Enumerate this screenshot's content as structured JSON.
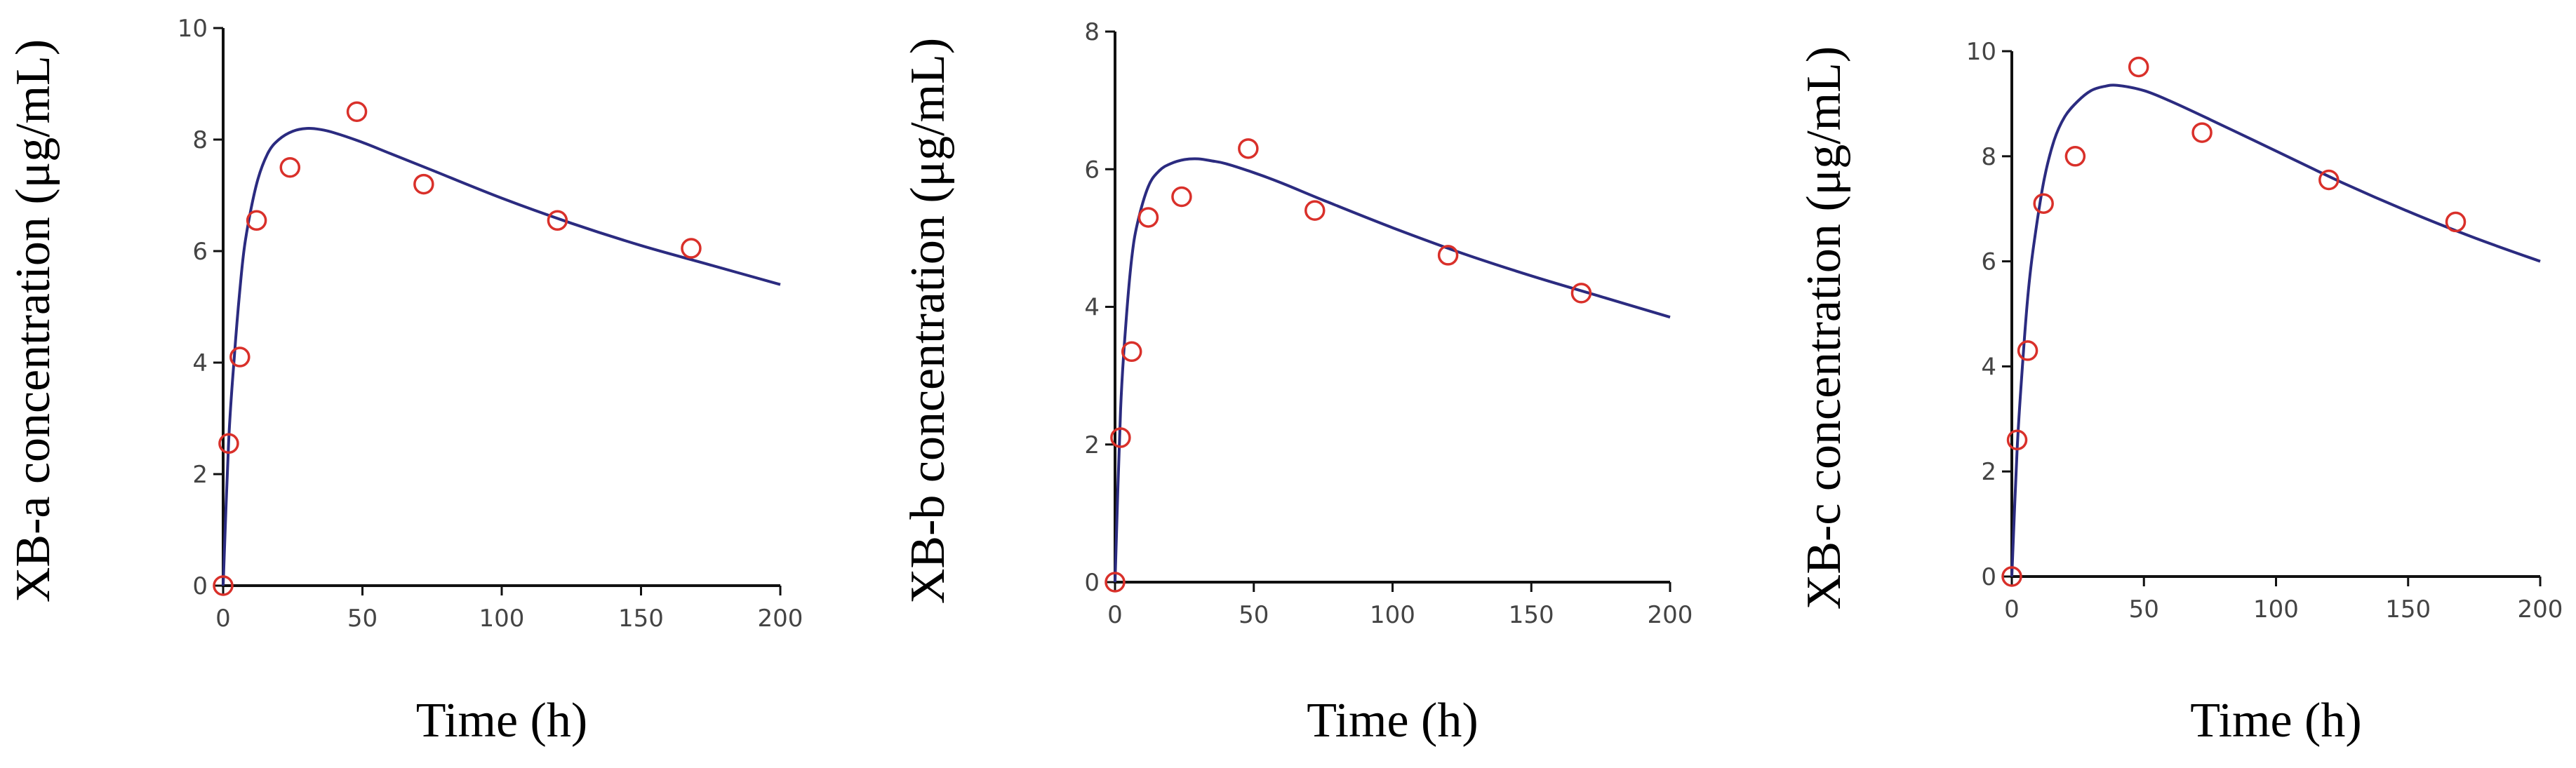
{
  "colors": {
    "fit_line": "#2b2b80",
    "observed": "#d9302a",
    "axis": "#111111"
  },
  "chart_data": [
    {
      "type": "scatter",
      "xlabel": "Time (h)",
      "ylabel": "XB-a concentration (μg/mL)",
      "xlim": [
        0,
        200
      ],
      "ylim": [
        0,
        10
      ],
      "xticks": [
        0,
        50,
        100,
        150,
        200
      ],
      "yticks": [
        0,
        2,
        4,
        6,
        8,
        10
      ],
      "grid": false,
      "observed": {
        "x": [
          0,
          2,
          6,
          12,
          24,
          48,
          72,
          120,
          168
        ],
        "y": [
          0,
          2.55,
          4.1,
          6.55,
          7.5,
          8.5,
          7.2,
          6.55,
          6.05
        ]
      },
      "fit": {
        "x": [
          0,
          2,
          4,
          6,
          8,
          12,
          16,
          20,
          25,
          30,
          35,
          40,
          50,
          60,
          75,
          100,
          125,
          150,
          175,
          200
        ],
        "y": [
          0,
          2.6,
          4.1,
          5.3,
          6.2,
          7.2,
          7.75,
          8.0,
          8.15,
          8.2,
          8.18,
          8.12,
          7.95,
          7.75,
          7.45,
          6.95,
          6.5,
          6.1,
          5.75,
          5.4
        ]
      }
    },
    {
      "type": "scatter",
      "xlabel": "Time (h)",
      "ylabel": "XB-b concentration (μg/mL)",
      "xlim": [
        0,
        200
      ],
      "ylim": [
        0,
        8
      ],
      "xticks": [
        0,
        50,
        100,
        150,
        200
      ],
      "yticks": [
        0,
        2,
        4,
        6,
        8
      ],
      "grid": false,
      "observed": {
        "x": [
          0,
          2,
          6,
          12,
          24,
          48,
          72,
          120,
          168
        ],
        "y": [
          0,
          2.1,
          3.35,
          5.3,
          5.6,
          6.3,
          5.4,
          4.75,
          4.2
        ]
      },
      "fit": {
        "x": [
          0,
          2,
          4,
          6,
          8,
          12,
          16,
          20,
          25,
          30,
          35,
          40,
          50,
          60,
          75,
          100,
          125,
          150,
          175,
          200
        ],
        "y": [
          0,
          2.5,
          3.8,
          4.7,
          5.2,
          5.75,
          5.98,
          6.08,
          6.14,
          6.15,
          6.12,
          6.08,
          5.95,
          5.8,
          5.55,
          5.15,
          4.78,
          4.45,
          4.15,
          3.85
        ]
      }
    },
    {
      "type": "scatter",
      "xlabel": "Time (h)",
      "ylabel": "XB-c concentration (μg/mL)",
      "xlim": [
        0,
        200
      ],
      "ylim": [
        0,
        10
      ],
      "xticks": [
        0,
        50,
        100,
        150,
        200
      ],
      "yticks": [
        0,
        2,
        4,
        6,
        8,
        10
      ],
      "grid": false,
      "observed": {
        "x": [
          0,
          2,
          6,
          12,
          24,
          48,
          72,
          120,
          168
        ],
        "y": [
          0,
          2.6,
          4.3,
          7.1,
          8.0,
          9.7,
          8.45,
          7.55,
          6.75
        ]
      },
      "fit": {
        "x": [
          0,
          2,
          4,
          6,
          8,
          12,
          16,
          20,
          25,
          30,
          35,
          40,
          50,
          60,
          75,
          100,
          125,
          150,
          175,
          200
        ],
        "y": [
          0,
          2.4,
          4.0,
          5.3,
          6.2,
          7.5,
          8.3,
          8.75,
          9.05,
          9.25,
          9.33,
          9.35,
          9.25,
          9.05,
          8.7,
          8.1,
          7.5,
          6.95,
          6.45,
          6.0
        ]
      }
    }
  ]
}
